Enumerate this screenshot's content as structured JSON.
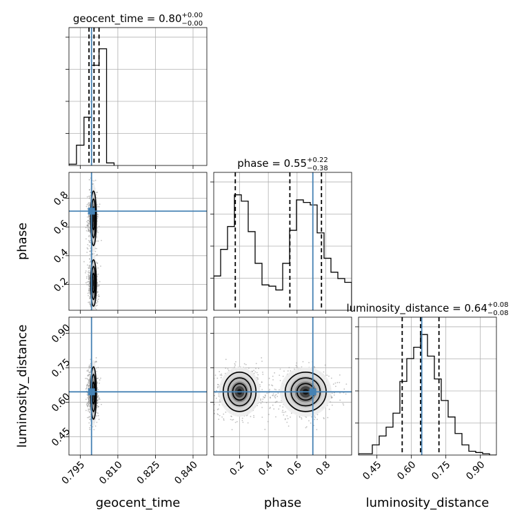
{
  "chart_data": {
    "type": "corner",
    "parameters": [
      {
        "key": "geocent_time",
        "label": "geocent_time",
        "range": [
          0.7905,
          0.8455
        ],
        "ticks": [
          0.795,
          0.81,
          0.825,
          0.84
        ],
        "tick_labels": [
          "0.795",
          "0.810",
          "0.825",
          "0.840"
        ],
        "truth": 0.7995,
        "quantiles": [
          0.7985,
          0.8005,
          0.8025
        ],
        "title": {
          "name": "geocent_time",
          "median": "0.80",
          "plus": "+0.00",
          "minus": "−0.00"
        },
        "hist_edges": [
          0.7905,
          0.7935,
          0.7965,
          0.7995,
          0.8025,
          0.8055,
          0.8085
        ],
        "hist_counts": [
          0.01,
          0.16,
          0.38,
          0.79,
          0.92,
          0.02
        ]
      },
      {
        "key": "phase",
        "label": "phase",
        "range": [
          0.02,
          0.98
        ],
        "ticks": [
          0.2,
          0.4,
          0.6,
          0.8
        ],
        "tick_labels": [
          "0.2",
          "0.4",
          "0.6",
          "0.8"
        ],
        "truth": 0.71,
        "quantiles": [
          0.17,
          0.55,
          0.77
        ],
        "title": {
          "name": "phase",
          "median": "0.55",
          "plus": "+0.22",
          "minus": "−0.38"
        },
        "hist_edges": [
          0.02,
          0.068,
          0.116,
          0.164,
          0.212,
          0.26,
          0.308,
          0.356,
          0.404,
          0.452,
          0.5,
          0.548,
          0.596,
          0.644,
          0.692,
          0.74,
          0.788,
          0.836,
          0.884,
          0.932,
          0.98
        ],
        "hist_counts": [
          0.27,
          0.48,
          0.66,
          0.91,
          0.86,
          0.62,
          0.37,
          0.2,
          0.19,
          0.16,
          0.37,
          0.63,
          0.87,
          0.85,
          0.83,
          0.61,
          0.41,
          0.3,
          0.25,
          0.22
        ]
      },
      {
        "key": "luminosity_distance",
        "label": "luminosity_distance",
        "range": [
          0.37,
          0.97
        ],
        "ticks": [
          0.45,
          0.6,
          0.75,
          0.9
        ],
        "tick_labels": [
          "0.45",
          "0.60",
          "0.75",
          "0.90"
        ],
        "truth": 0.645,
        "quantiles": [
          0.56,
          0.64,
          0.72
        ],
        "title": {
          "name": "luminosity_distance",
          "median": "0.64",
          "plus": "+0.08",
          "minus": "−0.08"
        },
        "hist_edges": [
          0.37,
          0.4,
          0.43,
          0.46,
          0.49,
          0.52,
          0.55,
          0.58,
          0.61,
          0.64,
          0.67,
          0.7,
          0.73,
          0.76,
          0.79,
          0.82,
          0.85,
          0.88,
          0.91,
          0.94,
          0.97
        ],
        "hist_counts": [
          0.01,
          0.01,
          0.08,
          0.15,
          0.22,
          0.33,
          0.58,
          0.76,
          0.85,
          0.95,
          0.78,
          0.6,
          0.43,
          0.3,
          0.17,
          0.08,
          0.03,
          0.02,
          0.01,
          0.0
        ]
      }
    ],
    "truth_color": "#4682b4",
    "contour_color": "#000000",
    "grid": true,
    "xlabel_rotation_deg": 45,
    "ylabel_rotation_deg": 45
  }
}
